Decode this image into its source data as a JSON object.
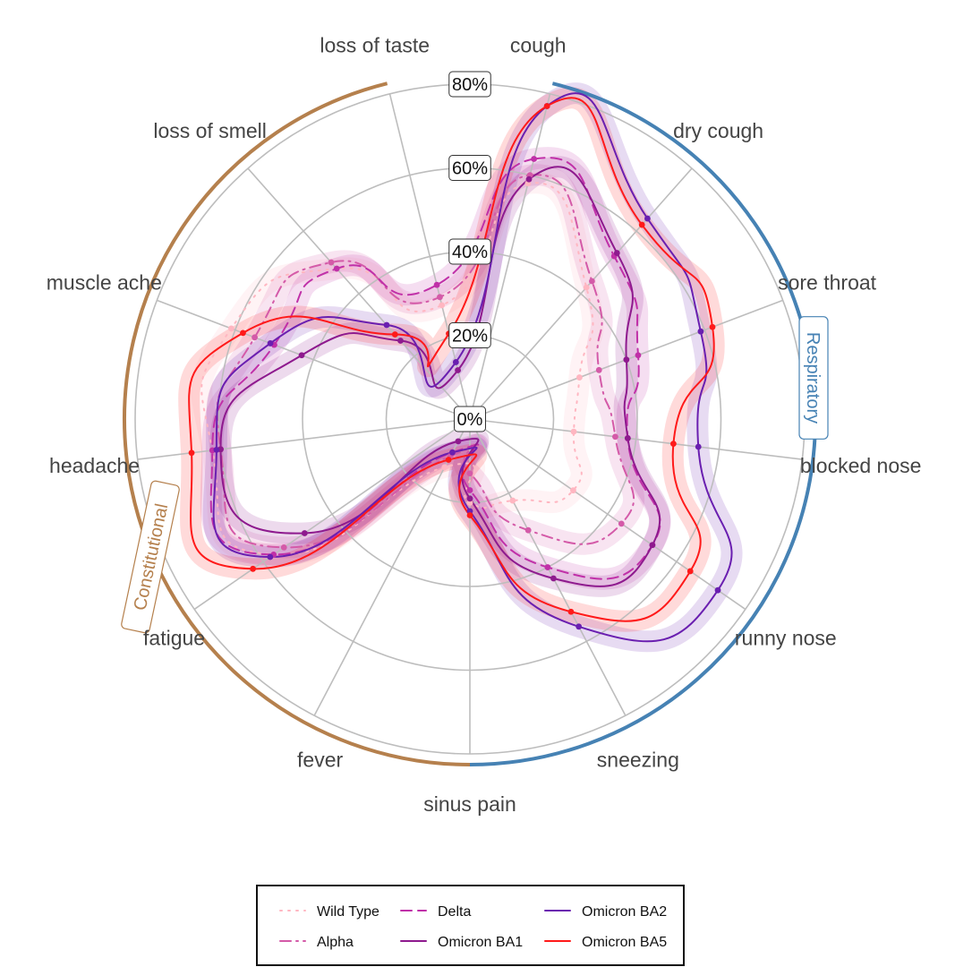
{
  "chart_data": {
    "type": "radar",
    "categories": [
      "cough",
      "dry cough",
      "sore throat",
      "blocked nose",
      "runny nose",
      "sneezing",
      "sinus pain",
      "fever",
      "fatigue",
      "headache",
      "muscle ache",
      "loss of smell",
      "loss of taste"
    ],
    "r_ticks": [
      0,
      20,
      40,
      60,
      80
    ],
    "r_tick_labels": [
      "0%",
      "20%",
      "40%",
      "60%",
      "80%"
    ],
    "rlim": [
      0,
      80
    ],
    "grid": true,
    "groups": [
      {
        "name": "Respiratory",
        "color": "#4682b4",
        "from": "cough",
        "to": "sinus pain"
      },
      {
        "name": "Constitutional",
        "color": "#b5804d",
        "from": "sinus pain",
        "to": "loss of taste"
      }
    ],
    "legend_position": "bottom",
    "series": [
      {
        "name": "Wild Type",
        "color": "#ffb6c1",
        "dash": "dotted",
        "band": true,
        "values": [
          58,
          42,
          28,
          25,
          30,
          22,
          20,
          13,
          57,
          62,
          61,
          48,
          28
        ]
      },
      {
        "name": "Alpha",
        "color": "#d45aa8",
        "dash": "dashdot",
        "band": true,
        "values": [
          60,
          44,
          33,
          35,
          44,
          30,
          13,
          10,
          54,
          60,
          55,
          50,
          30
        ]
      },
      {
        "name": "Delta",
        "color": "#c030a8",
        "dash": "dashed",
        "band": true,
        "values": [
          64,
          52,
          43,
          38,
          53,
          40,
          17,
          9,
          57,
          62,
          50,
          48,
          33
        ]
      },
      {
        "name": "Omicron BA1",
        "color": "#8e1a8e",
        "dash": "solid",
        "band": true,
        "values": [
          59,
          53,
          40,
          38,
          53,
          43,
          19,
          6,
          48,
          60,
          43,
          25,
          12
        ]
      },
      {
        "name": "Omicron BA2",
        "color": "#6a1fb0",
        "dash": "solid",
        "band": true,
        "values": [
          77,
          64,
          59,
          55,
          72,
          56,
          22,
          9,
          58,
          61,
          51,
          30,
          14
        ]
      },
      {
        "name": "Omicron BA5",
        "color": "#ff1a1a",
        "dash": "solid",
        "band": true,
        "values": [
          77,
          62,
          62,
          49,
          64,
          52,
          23,
          11,
          63,
          67,
          58,
          27,
          21
        ]
      }
    ]
  }
}
